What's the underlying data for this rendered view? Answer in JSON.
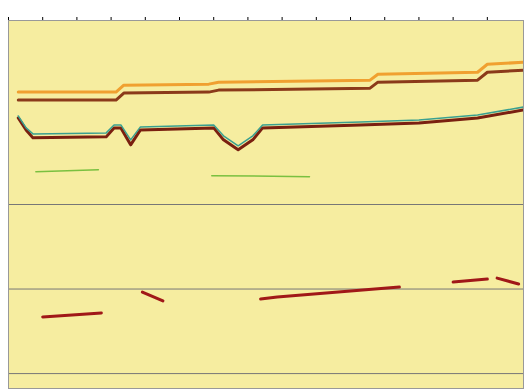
{
  "chart_data": {
    "type": "line",
    "xlim": [
      0,
      527
    ],
    "ylim": [
      390,
      20
    ],
    "xticks": [
      0,
      35,
      70,
      105,
      140,
      175,
      210,
      245,
      280,
      315,
      350,
      385,
      420,
      455,
      490
    ],
    "yticks": [
      205,
      290,
      375
    ],
    "grid": true,
    "tick_labels": false,
    "series": [
      {
        "color": "#f0a030",
        "line_style": "thick",
        "x": [
          10,
          110,
          118,
          205,
          215,
          370,
          378,
          480,
          490,
          527
        ],
        "values": [
          92,
          92,
          85,
          84,
          82,
          80,
          74,
          72,
          64,
          62
        ]
      },
      {
        "color": "#8b3a1a",
        "line_style": "thick",
        "x": [
          10,
          110,
          118,
          205,
          215,
          370,
          378,
          480,
          490,
          527
        ],
        "values": [
          100,
          100,
          93,
          92,
          90,
          88,
          82,
          80,
          72,
          70
        ]
      },
      {
        "color": "#7a2010",
        "line_style": "thick",
        "x": [
          10,
          18,
          25,
          100,
          108,
          115,
          125,
          135,
          210,
          220,
          235,
          250,
          260,
          360,
          420,
          480,
          527
        ],
        "values": [
          118,
          130,
          138,
          137,
          128,
          128,
          145,
          130,
          128,
          140,
          150,
          140,
          128,
          125,
          123,
          118,
          110
        ]
      },
      {
        "color": "#3aa090",
        "line_style": "solid",
        "x": [
          10,
          18,
          25,
          100,
          108,
          115,
          125,
          135,
          210,
          220,
          235,
          250,
          260,
          360,
          420,
          480,
          527
        ],
        "values": [
          116,
          128,
          134,
          133,
          125,
          125,
          140,
          127,
          125,
          136,
          146,
          136,
          125,
          122,
          120,
          115,
          107
        ]
      },
      {
        "color": "#7ac040",
        "line_style": "solid",
        "x": [
          28,
          92,
          100,
          208,
          308
        ],
        "values": [
          172,
          170,
          null,
          176,
          177
        ]
      },
      {
        "color": "#a01818",
        "line_style": "thick",
        "x": [
          35,
          95,
          100,
          137,
          158,
          170,
          258,
          275,
          400,
          410,
          455,
          490,
          495,
          500,
          522
        ],
        "values": [
          318,
          314,
          null,
          293,
          302,
          null,
          300,
          298,
          288,
          null,
          283,
          280,
          null,
          279,
          285
        ]
      }
    ]
  }
}
